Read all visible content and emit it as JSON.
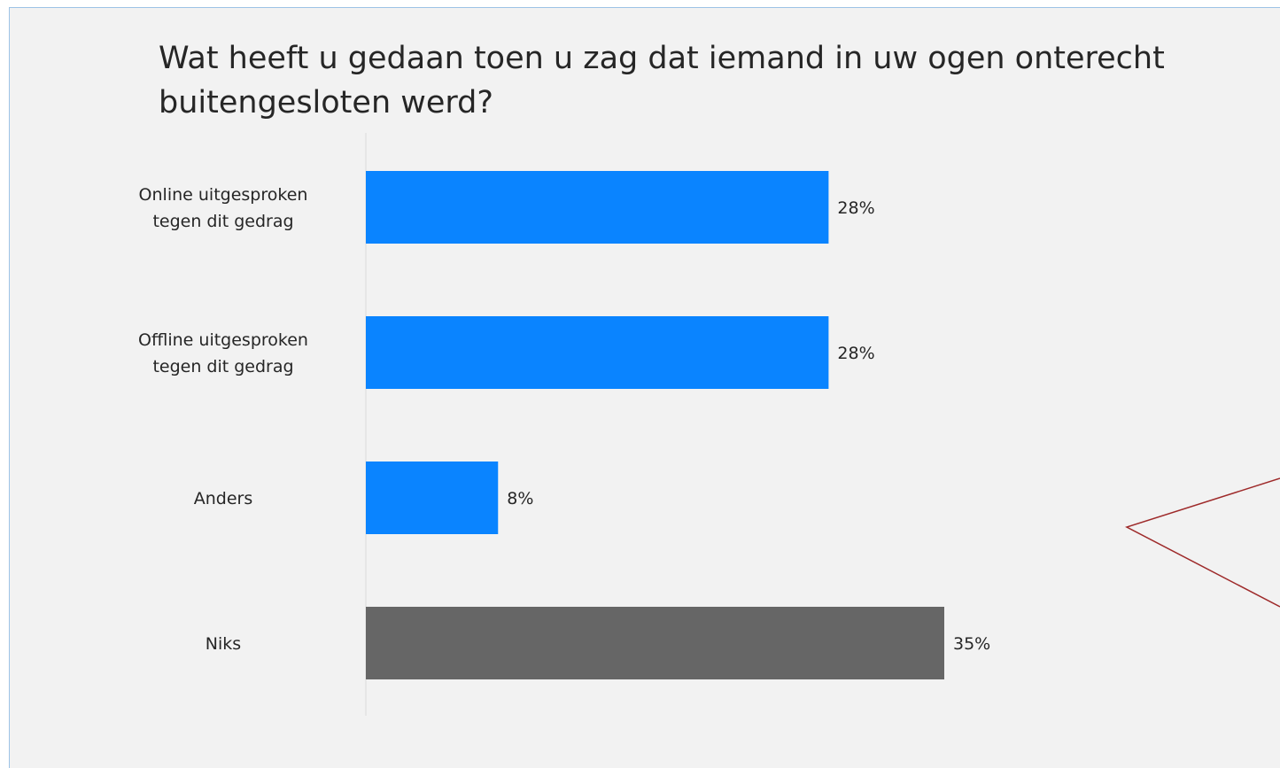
{
  "chart_data": {
    "type": "bar",
    "orientation": "horizontal",
    "title": "Wat heeft u gedaan toen u zag dat iemand in uw ogen onterecht buitengesloten werd?",
    "categories": [
      [
        "Online uitgesproken",
        "tegen dit gedrag"
      ],
      [
        "Offline uitgesproken",
        "tegen dit gedrag"
      ],
      [
        "Anders"
      ],
      [
        "Niks"
      ]
    ],
    "values": [
      28,
      28,
      8,
      35
    ],
    "value_labels": [
      "28%",
      "28%",
      "8%",
      "35%"
    ],
    "unit": "%",
    "bar_colors": [
      "#0a84ff",
      "#0a84ff",
      "#0a84ff",
      "#666666"
    ],
    "xlim": [
      0,
      35
    ],
    "grid": false,
    "legend": "none",
    "xlabel": "",
    "ylabel": ""
  },
  "annotation": {
    "shape": "callout",
    "stroke_color": "#9e2a2a"
  }
}
